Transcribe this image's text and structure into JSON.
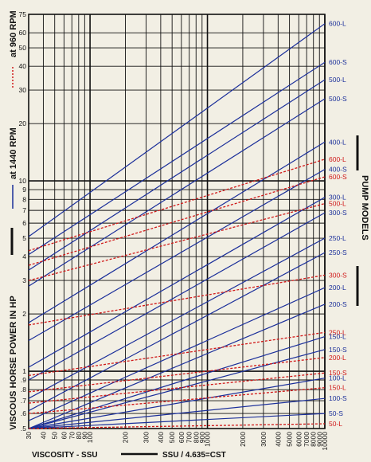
{
  "chart_data": {
    "type": "line",
    "title": "",
    "xlabel": "VISCOSITY - SSU",
    "xlabel_note": "SSU / 4.635=CST",
    "ylabel": "VISCOUS HORSE POWER IN HP",
    "ylabel_blue": "at 1440 RPM",
    "ylabel_red": "at 960 RPM",
    "right_label": "PUMP MODELS",
    "x_scale": "log",
    "y_scale": "log",
    "xlim": [
      30,
      10000
    ],
    "ylim": [
      0.5,
      75
    ],
    "x_ticks": [
      30,
      40,
      50,
      60,
      70,
      80,
      90,
      100,
      200,
      300,
      400,
      500,
      600,
      700,
      800,
      900,
      1000,
      2000,
      3000,
      4000,
      5000,
      6000,
      7000,
      8000,
      9000,
      10000
    ],
    "x_tick_labels": [
      "30",
      "40",
      "50",
      "60",
      "70",
      "80",
      "90",
      "100",
      "200",
      "300",
      "400",
      "500",
      "600",
      "700",
      "800",
      "900",
      "1000",
      "2000",
      "3000",
      "4000",
      "5000",
      "6000",
      "7000",
      "8000",
      "9000",
      "10000"
    ],
    "y_ticks": [
      0.5,
      0.6,
      0.7,
      0.8,
      0.9,
      1,
      2,
      3,
      4,
      5,
      6,
      7,
      8,
      9,
      10,
      20,
      30,
      40,
      50,
      60,
      75
    ],
    "y_tick_labels": [
      ".5",
      ".6",
      ".7",
      ".8",
      ".9",
      "1",
      "2",
      "3",
      "4",
      "5",
      "6",
      "7",
      "8",
      "9",
      "10",
      "20",
      "30",
      "40",
      "50",
      "60",
      "75"
    ],
    "grid": true,
    "colors": {
      "blue": "#1b2f9a",
      "red": "#d01818",
      "grid": "#111111",
      "background": "#f2efe4"
    },
    "series": [
      {
        "name": "600-L",
        "color": "blue",
        "style": "solid",
        "x": [
          30,
          10000
        ],
        "y": [
          5.1,
          67
        ]
      },
      {
        "name": "600-S",
        "color": "blue",
        "style": "solid",
        "x": [
          30,
          10000
        ],
        "y": [
          4.1,
          42
        ]
      },
      {
        "name": "500-L",
        "color": "blue",
        "style": "solid",
        "x": [
          30,
          10000
        ],
        "y": [
          3.4,
          34
        ]
      },
      {
        "name": "500-S",
        "color": "blue",
        "style": "solid",
        "x": [
          30,
          10000
        ],
        "y": [
          2.8,
          27
        ]
      },
      {
        "name": "400-L",
        "color": "blue",
        "style": "solid",
        "x": [
          30,
          10000
        ],
        "y": [
          1.8,
          16
        ]
      },
      {
        "name": "600-L",
        "color": "red",
        "style": "dashed",
        "x": [
          30,
          10000
        ],
        "y": [
          4.3,
          13
        ]
      },
      {
        "name": "400-S",
        "color": "blue",
        "style": "solid",
        "x": [
          30,
          10000
        ],
        "y": [
          1.45,
          11.5
        ]
      },
      {
        "name": "600-S",
        "color": "red",
        "style": "dashed",
        "x": [
          30,
          10000
        ],
        "y": [
          3.6,
          10.5
        ]
      },
      {
        "name": "300-L",
        "color": "blue",
        "style": "solid",
        "x": [
          30,
          10000
        ],
        "y": [
          1.05,
          8.2
        ]
      },
      {
        "name": "500-L",
        "color": "red",
        "style": "dashed",
        "x": [
          30,
          10000
        ],
        "y": [
          3.0,
          7.6
        ]
      },
      {
        "name": "300-S",
        "color": "blue",
        "style": "solid",
        "x": [
          30,
          10000
        ],
        "y": [
          0.9,
          6.8
        ]
      },
      {
        "name": "250-L",
        "color": "blue",
        "style": "solid",
        "x": [
          30,
          10000
        ],
        "y": [
          0.72,
          5.0
        ]
      },
      {
        "name": "250-S",
        "color": "blue",
        "style": "solid",
        "x": [
          30,
          10000
        ],
        "y": [
          0.62,
          4.2
        ]
      },
      {
        "name": "300-S",
        "color": "red",
        "style": "dashed",
        "x": [
          30,
          10000
        ],
        "y": [
          1.75,
          3.2
        ]
      },
      {
        "name": "200-L",
        "color": "blue",
        "style": "solid",
        "x": [
          30,
          10000
        ],
        "y": [
          0.55,
          2.75
        ]
      },
      {
        "name": "200-S",
        "color": "blue",
        "style": "solid",
        "x": [
          30,
          10000
        ],
        "y": [
          0.5,
          2.25
        ]
      },
      {
        "name": "250-L",
        "color": "red",
        "style": "dashed",
        "x": [
          30,
          10000
        ],
        "y": [
          0.95,
          1.6
        ]
      },
      {
        "name": "150-L",
        "color": "blue",
        "style": "solid",
        "x": [
          30,
          10000
        ],
        "y": [
          0.5,
          1.52
        ]
      },
      {
        "name": "150-S",
        "color": "blue",
        "style": "solid",
        "x": [
          30,
          10000
        ],
        "y": [
          0.5,
          1.3
        ]
      },
      {
        "name": "200-L",
        "color": "red",
        "style": "dashed",
        "x": [
          30,
          10000
        ],
        "y": [
          0.78,
          1.18
        ]
      },
      {
        "name": "150-S",
        "color": "red",
        "style": "dashed",
        "x": [
          30,
          10000
        ],
        "y": [
          0.68,
          0.98
        ]
      },
      {
        "name": "100-L",
        "color": "blue",
        "style": "solid",
        "x": [
          30,
          10000
        ],
        "y": [
          0.5,
          0.92
        ]
      },
      {
        "name": "150-L",
        "color": "red",
        "style": "dashed",
        "x": [
          30,
          10000
        ],
        "y": [
          0.6,
          0.82
        ]
      },
      {
        "name": "100-S",
        "color": "blue",
        "style": "solid",
        "x": [
          30,
          10000
        ],
        "y": [
          0.5,
          0.72
        ]
      },
      {
        "name": "50-S",
        "color": "blue",
        "style": "solid",
        "x": [
          30,
          10000
        ],
        "y": [
          0.5,
          0.6
        ]
      },
      {
        "name": "50-L",
        "color": "red",
        "style": "dashed",
        "x": [
          30,
          10000
        ],
        "y": [
          0.5,
          0.53
        ]
      }
    ]
  }
}
